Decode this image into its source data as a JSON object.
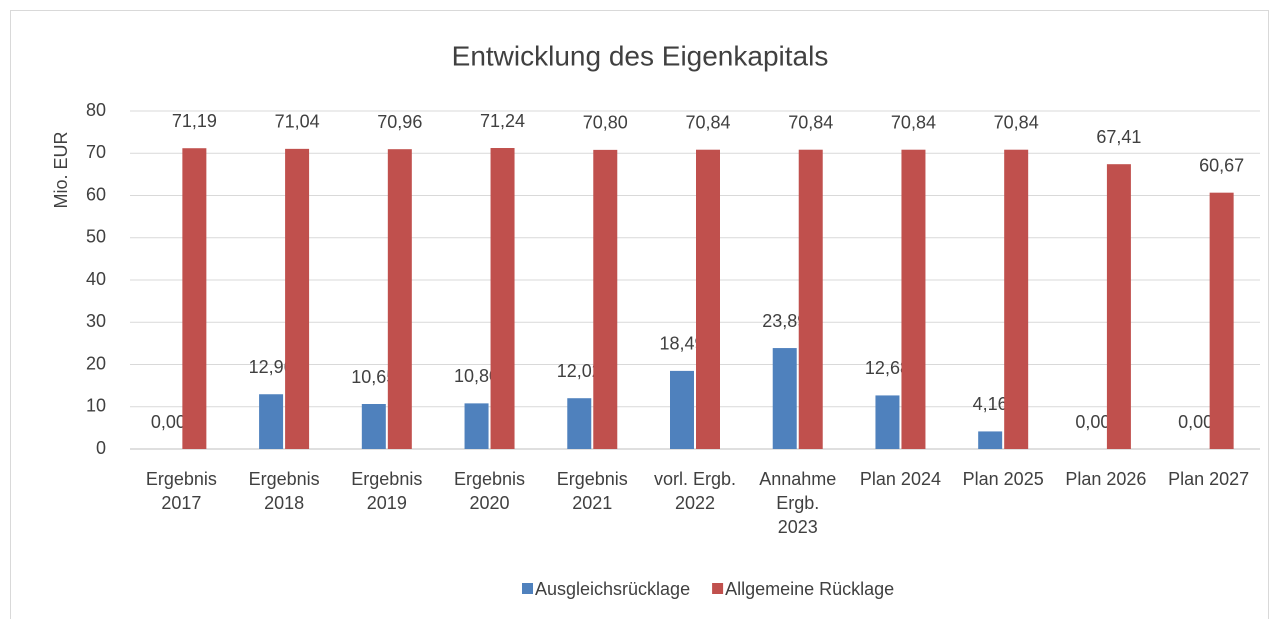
{
  "chart_data": {
    "type": "bar",
    "title": "Entwicklung des Eigenkapitals",
    "y_label": "Mio.  EUR",
    "categories": [
      [
        "Ergebnis",
        "2017"
      ],
      [
        "Ergebnis",
        "2018"
      ],
      [
        "Ergebnis",
        "2019"
      ],
      [
        "Ergebnis",
        "2020"
      ],
      [
        "Ergebnis",
        "2021"
      ],
      [
        "vorl. Ergb.",
        "2022"
      ],
      [
        "Annahme",
        "Ergb.",
        "2023"
      ],
      [
        "Plan 2024"
      ],
      [
        "Plan 2025"
      ],
      [
        "Plan 2026"
      ],
      [
        "Plan 2027"
      ]
    ],
    "series": [
      {
        "name": "Ausgleichsrücklage",
        "color": "#4f81bd",
        "values": [
          0,
          12.96,
          10.65,
          10.8,
          12.02,
          18.49,
          23.89,
          12.68,
          4.16,
          0,
          0
        ],
        "value_labels": [
          "0,00",
          "12,96",
          "10,65",
          "10,80",
          "12,02",
          "18,49",
          "23,89",
          "12,68",
          "4,16",
          "0,00",
          "0,00"
        ]
      },
      {
        "name": "Allgemeine Rücklage",
        "color": "#c0504d",
        "values": [
          71.19,
          71.04,
          70.96,
          71.24,
          70.8,
          70.84,
          70.84,
          70.84,
          70.84,
          67.41,
          60.67
        ],
        "value_labels": [
          "71,19",
          "71,04",
          "70,96",
          "71,24",
          "70,80",
          "70,84",
          "70,84",
          "70,84",
          "70,84",
          "67,41",
          "60,67"
        ]
      }
    ],
    "ylim": [
      0,
      80
    ],
    "yticks": [
      0,
      10,
      20,
      30,
      40,
      50,
      60,
      70,
      80
    ],
    "grid": true,
    "legend": "bottom"
  }
}
